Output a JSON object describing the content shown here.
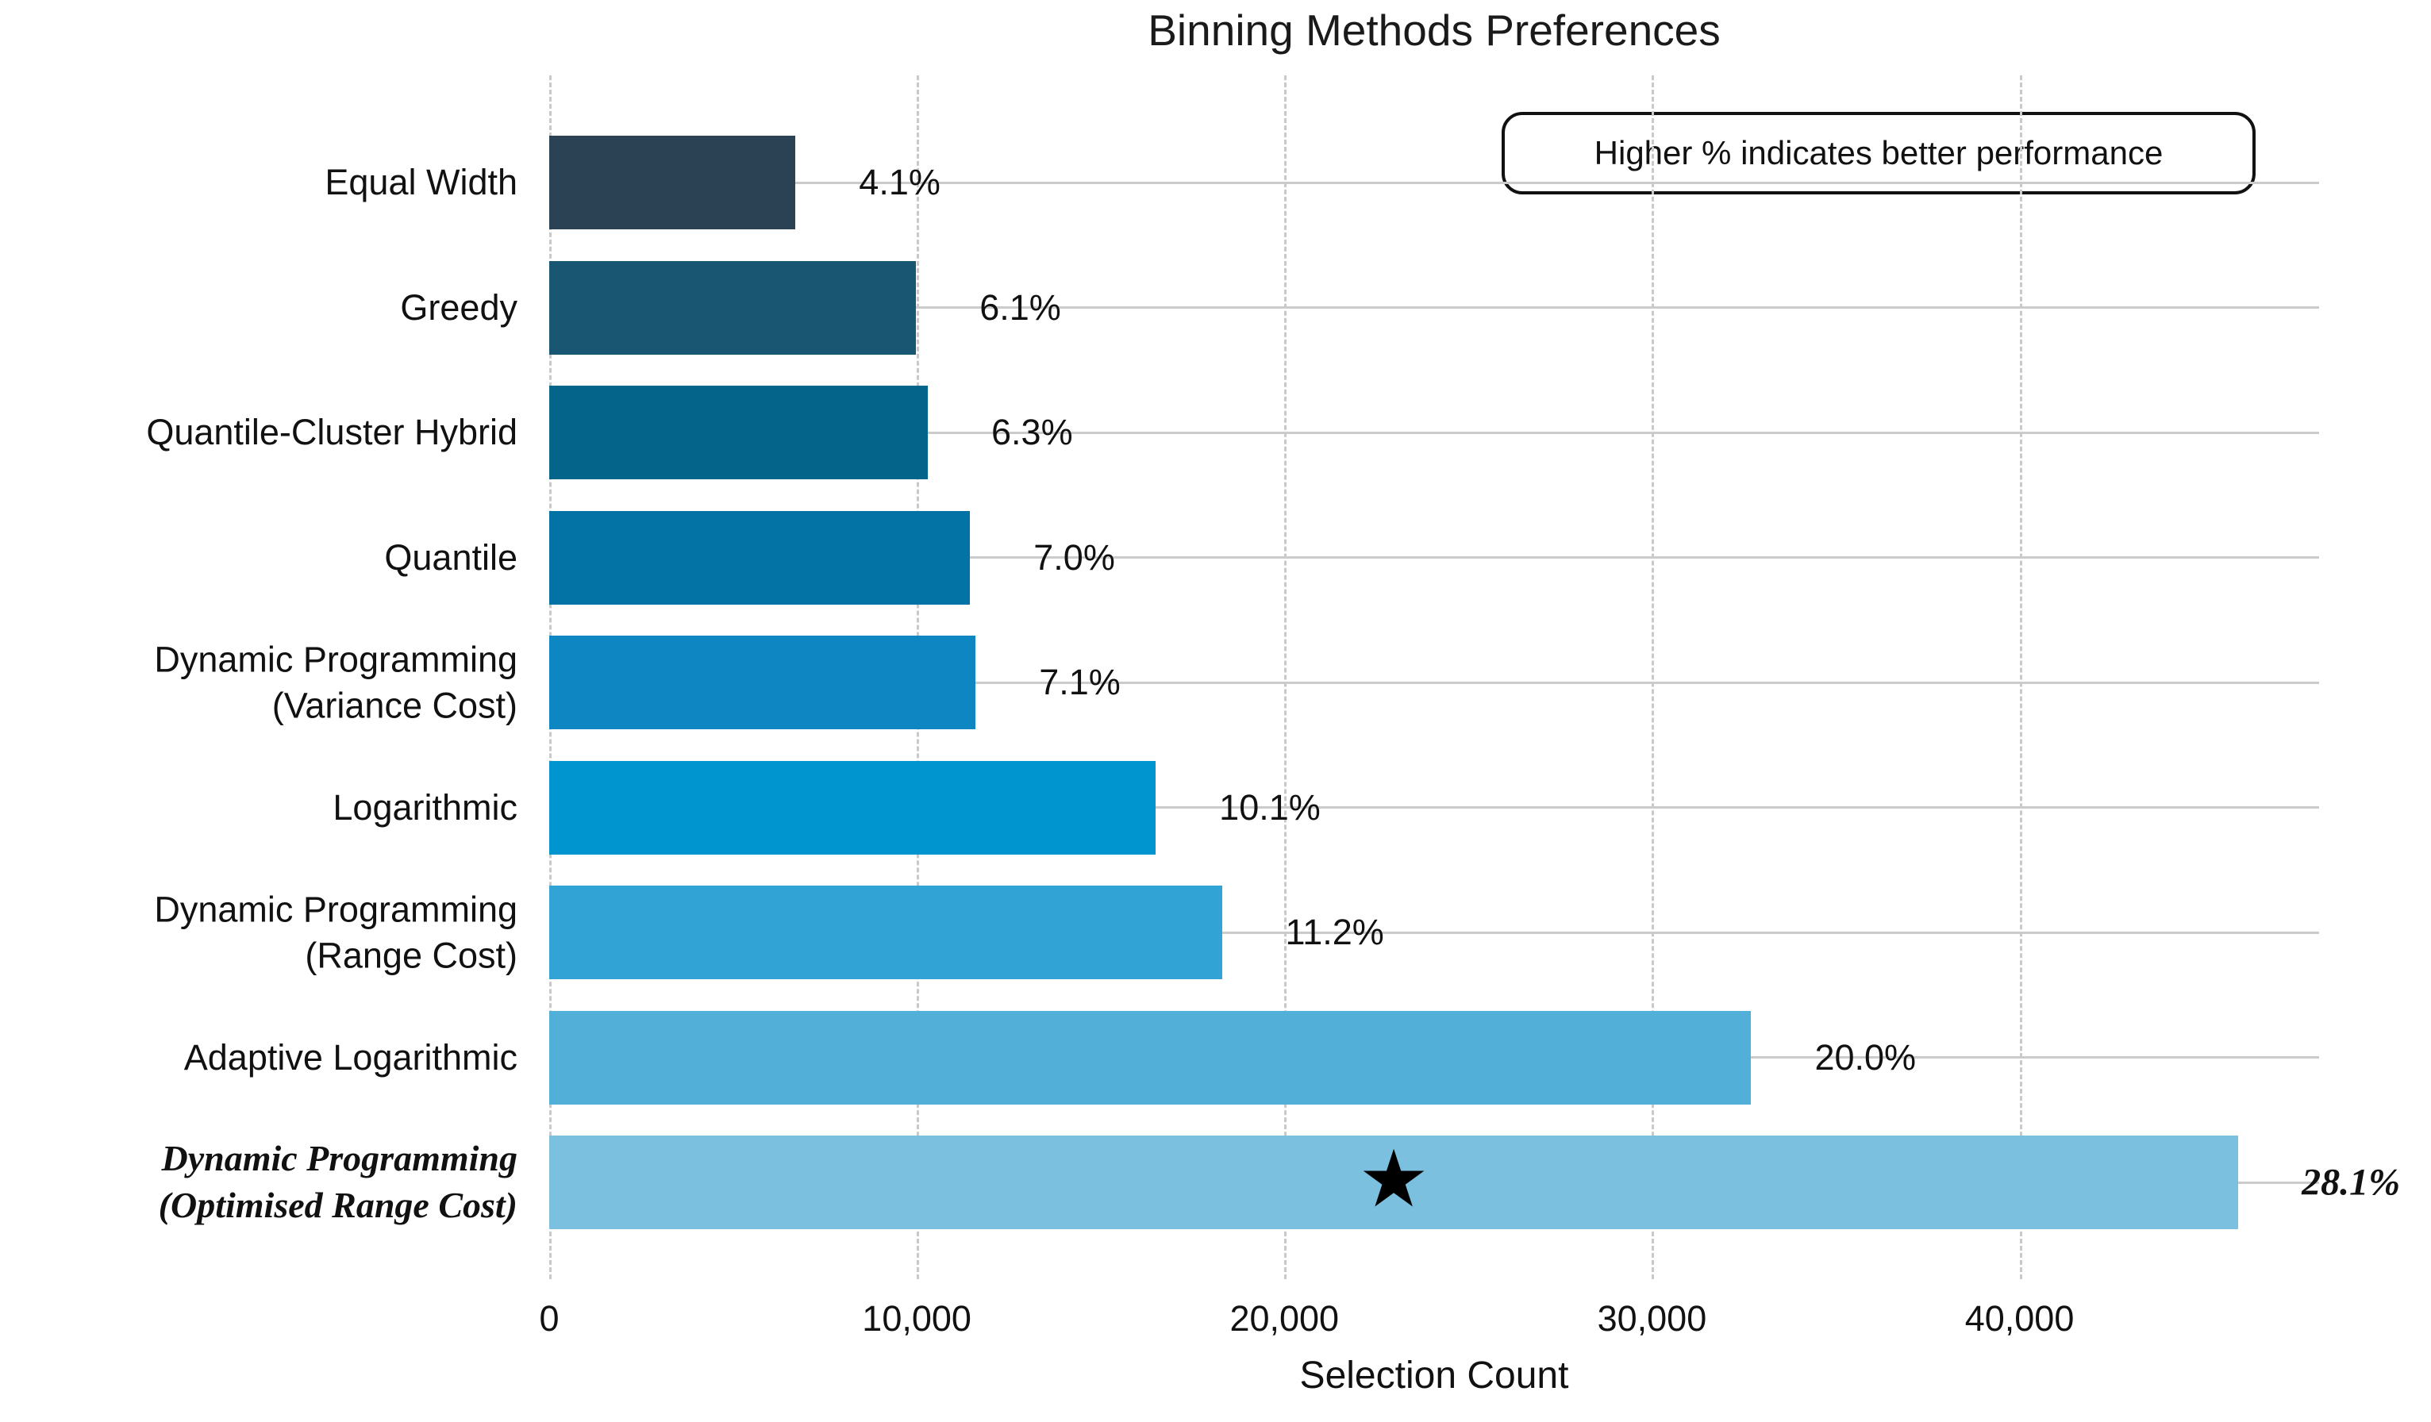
{
  "chart_data": {
    "type": "bar",
    "orientation": "horizontal",
    "title": "Binning Methods Preferences",
    "xlabel": "Selection Count",
    "ylabel": "",
    "annotation": "Higher % indicates better performance",
    "legend_position": "none",
    "grid": "vertical dashed gridlines at ticks; light horizontal line at each category row",
    "categories": [
      "Equal Width",
      "Greedy",
      "Quantile-Cluster Hybrid",
      "Quantile",
      "Dynamic Programming\n(Variance Cost)",
      "Logarithmic",
      "Dynamic Programming\n(Range Cost)",
      "Adaptive Logarithmic",
      "Dynamic Programming\n(Optimised Range Cost)"
    ],
    "values": [
      6700,
      9980,
      10300,
      11450,
      11600,
      16500,
      18300,
      32700,
      45950
    ],
    "value_labels": [
      "4.1%",
      "6.1%",
      "6.3%",
      "7.0%",
      "7.1%",
      "10.1%",
      "11.2%",
      "20.0%",
      "28.1%"
    ],
    "percentages": [
      4.1,
      6.1,
      6.3,
      7.0,
      7.1,
      10.1,
      11.2,
      20.0,
      28.1
    ],
    "bar_colors": [
      "#2a4254",
      "#195672",
      "#05648a",
      "#0373a6",
      "#0e86c1",
      "#0095ce",
      "#31a3d4",
      "#52b0d8",
      "#7cc0e0"
    ],
    "highlight_index": 8,
    "highlight_marker": "star",
    "star_glyph": "★",
    "x_ticks": [
      {
        "label": "0",
        "value": 0
      },
      {
        "label": "10,000",
        "value": 10000
      },
      {
        "label": "20,000",
        "value": 20000
      },
      {
        "label": "30,000",
        "value": 30000
      },
      {
        "label": "40,000",
        "value": 40000
      }
    ],
    "xlim": [
      0,
      48150
    ]
  },
  "colors": {
    "background": "#ffffff",
    "vertical_gridline": "#c9c9c9",
    "row_line": "#cbcbcb",
    "text": "#111111",
    "annotation_border": "#111111",
    "star": "#000000"
  }
}
